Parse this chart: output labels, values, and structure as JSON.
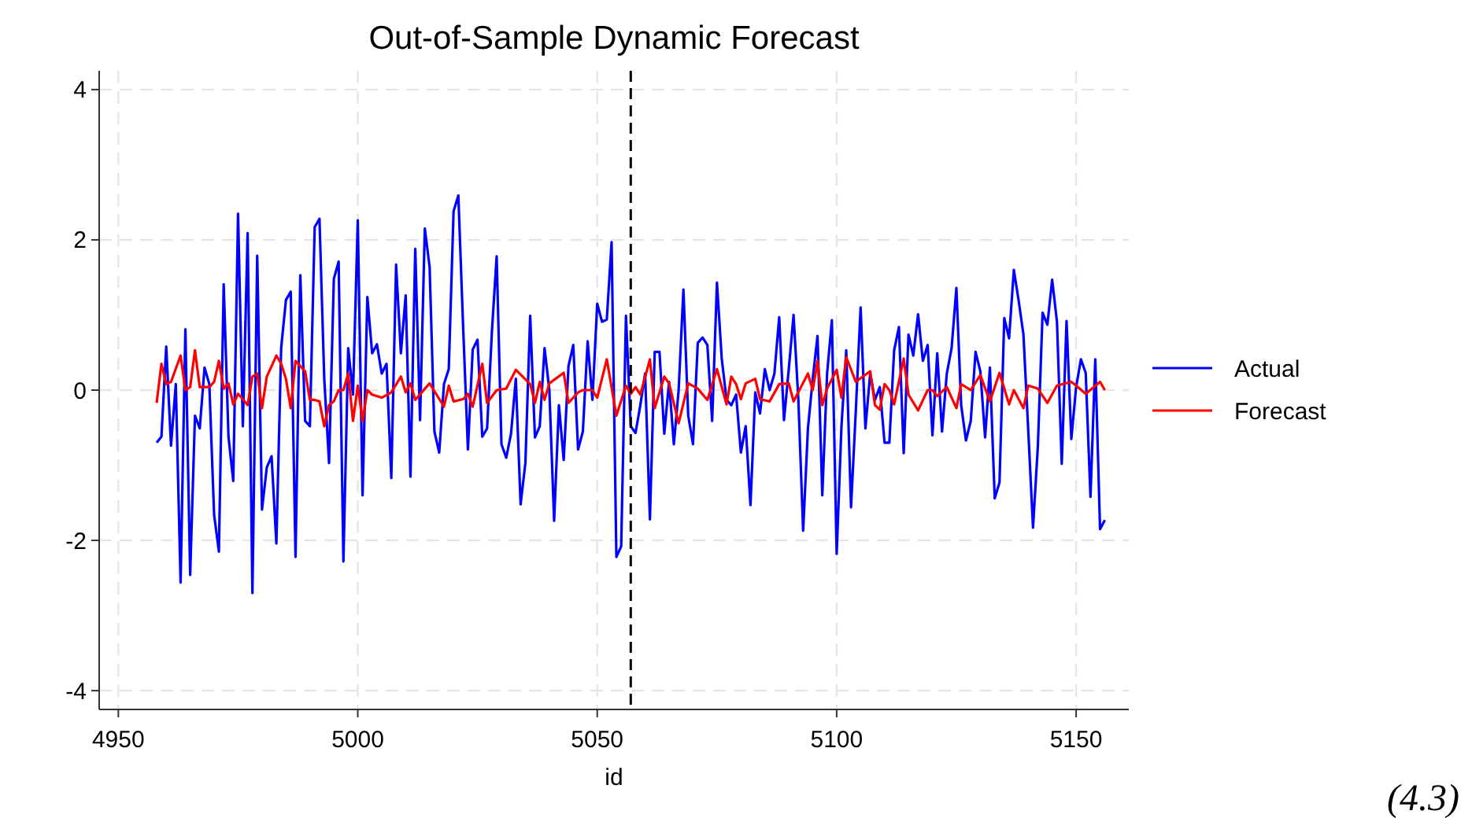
{
  "chart_data": {
    "type": "line",
    "title": "Out-of-Sample Dynamic Forecast",
    "xlabel": "id",
    "annotations": [
      "(4.3)"
    ],
    "xlim": [
      4946,
      5161
    ],
    "xticks": [
      4950,
      5000,
      5050,
      5100,
      5150
    ],
    "ylim": [
      -4.25,
      4.25
    ],
    "yticks": [
      -4,
      -2,
      0,
      2,
      4
    ],
    "grid": true,
    "legend": "right",
    "ref_lines": [
      {
        "axis": "x",
        "value": 5057,
        "label": null,
        "color": "#000000",
        "line_style": "dashed"
      }
    ],
    "x": [
      4958,
      4959,
      4960,
      4961,
      4962,
      4963,
      4964,
      4965,
      4966,
      4967,
      4968,
      4969,
      4970,
      4971,
      4972,
      4973,
      4974,
      4975,
      4976,
      4977,
      4978,
      4979,
      4980,
      4981,
      4982,
      4983,
      4984,
      4985,
      4986,
      4987,
      4988,
      4989,
      4990,
      4991,
      4992,
      4993,
      4994,
      4995,
      4996,
      4997,
      4998,
      4999,
      5000,
      5001,
      5002,
      5003,
      5004,
      5005,
      5006,
      5007,
      5008,
      5009,
      5010,
      5011,
      5012,
      5013,
      5014,
      5015,
      5016,
      5017,
      5018,
      5019,
      5020,
      5021,
      5022,
      5023,
      5024,
      5025,
      5026,
      5027,
      5028,
      5029,
      5030,
      5031,
      5032,
      5033,
      5034,
      5035,
      5036,
      5037,
      5038,
      5039,
      5040,
      5041,
      5042,
      5043,
      5044,
      5045,
      5046,
      5047,
      5048,
      5049,
      5050,
      5051,
      5052,
      5053,
      5054,
      5055,
      5056,
      5057,
      5058,
      5059,
      5060,
      5061,
      5062,
      5063,
      5064,
      5065,
      5066,
      5067,
      5068,
      5069,
      5070,
      5071,
      5072,
      5073,
      5074,
      5075,
      5076,
      5077,
      5078,
      5079,
      5080,
      5081,
      5082,
      5083,
      5084,
      5085,
      5086,
      5087,
      5088,
      5089,
      5090,
      5091,
      5092,
      5093,
      5094,
      5095,
      5096,
      5097,
      5098,
      5099,
      5100,
      5101,
      5102,
      5103,
      5104,
      5105,
      5106,
      5107,
      5108,
      5109,
      5110,
      5111,
      5112,
      5113,
      5114,
      5115,
      5116,
      5117,
      5118,
      5119,
      5120,
      5121,
      5122,
      5123,
      5124,
      5125,
      5126,
      5127,
      5128,
      5129,
      5130,
      5131,
      5132,
      5133,
      5134,
      5135,
      5136,
      5137,
      5138,
      5139,
      5140,
      5141,
      5142,
      5143,
      5144,
      5145,
      5146,
      5147,
      5148,
      5149,
      5150,
      5151,
      5152,
      5153,
      5154,
      5155,
      5156
    ],
    "series": [
      {
        "name": "Actual",
        "color": "#0000ff",
        "values": [
          -0.7,
          -0.62,
          0.58,
          -0.74,
          0.08,
          -2.56,
          0.81,
          -2.46,
          -0.34,
          -0.51,
          0.3,
          0.08,
          -1.66,
          -2.15,
          1.41,
          -0.62,
          -1.21,
          2.35,
          -0.48,
          2.09,
          -2.7,
          1.79,
          -1.59,
          -1.03,
          -0.88,
          -2.04,
          0.56,
          1.2,
          1.31,
          -2.22,
          1.53,
          -0.41,
          -0.48,
          2.17,
          2.28,
          0.15,
          -0.97,
          1.48,
          1.71,
          -2.28,
          0.56,
          -0.06,
          2.26,
          -1.4,
          1.24,
          0.49,
          0.61,
          0.22,
          0.35,
          -1.17,
          1.67,
          0.49,
          1.26,
          -1.15,
          1.88,
          -0.4,
          2.15,
          1.64,
          -0.55,
          -0.83,
          0.08,
          0.28,
          2.38,
          2.59,
          0.84,
          -0.79,
          0.54,
          0.67,
          -0.62,
          -0.51,
          0.77,
          1.78,
          -0.72,
          -0.9,
          -0.58,
          0.15,
          -1.52,
          -0.97,
          0.99,
          -0.63,
          -0.48,
          0.56,
          0,
          -1.74,
          -0.2,
          -0.93,
          0.32,
          0.6,
          -0.79,
          -0.55,
          0.65,
          -0.13,
          1.15,
          0.91,
          0.94,
          1.97,
          -2.22,
          -2.08,
          0.99,
          -0.48,
          -0.57,
          -0.2,
          0.22,
          -1.72,
          0.51,
          0.51,
          -0.58,
          0.11,
          -0.72,
          0,
          1.34,
          -0.34,
          -0.72,
          0.63,
          0.7,
          0.6,
          -0.41,
          1.43,
          0.42,
          -0.13,
          -0.2,
          -0.06,
          -0.83,
          -0.48,
          -1.53,
          -0.03,
          -0.31,
          0.28,
          0,
          0.22,
          0.97,
          -0.4,
          0.28,
          1.0,
          -0.13,
          -1.87,
          -0.51,
          0.15,
          0.72,
          -1.4,
          0.22,
          0.93,
          -2.18,
          -0.48,
          0.53,
          -1.56,
          -0.27,
          1.1,
          -0.51,
          0.22,
          -0.13,
          0.04,
          -0.7,
          -0.7,
          0.53,
          0.84,
          -0.84,
          0.74,
          0.46,
          1.01,
          0.39,
          0.6,
          -0.6,
          0.49,
          -0.55,
          0.22,
          0.56,
          1.36,
          -0.2,
          -0.67,
          -0.41,
          0.51,
          0.25,
          -0.63,
          0.3,
          -1.44,
          -1.23,
          0.96,
          0.69,
          1.6,
          1.19,
          0.74,
          -0.53,
          -1.83,
          -0.76,
          1.03,
          0.87,
          1.47,
          0.91,
          -0.98,
          0.92,
          -0.65,
          0.04,
          0.41,
          0.23,
          -1.42,
          0.41,
          -1.85,
          -1.73
        ]
      },
      {
        "name": "Forecast",
        "color": "#ff0000",
        "x": [
          4958,
          4959,
          4960,
          4961,
          4963,
          4964,
          4965,
          4966,
          4967,
          4969,
          4970,
          4971,
          4972,
          4973,
          4974,
          4975,
          4976,
          4977,
          4978,
          4979,
          4980,
          4981,
          4983,
          4984,
          4985,
          4986,
          4987,
          4989,
          4990,
          4991,
          4992,
          4993,
          4994,
          4995,
          4996,
          4997,
          4998,
          4999,
          5000,
          5001,
          5002,
          5003,
          5005,
          5007,
          5009,
          5010,
          5011,
          5012,
          5015,
          5018,
          5019,
          5020,
          5022,
          5023,
          5024,
          5026,
          5027,
          5029,
          5031,
          5033,
          5036,
          5037,
          5038,
          5039,
          5040,
          5043,
          5044,
          5046,
          5047,
          5049,
          5050,
          5052,
          5054,
          5056,
          5057,
          5058,
          5059,
          5061,
          5062,
          5064,
          5065,
          5067,
          5069,
          5071,
          5073,
          5075,
          5077,
          5078,
          5079,
          5080,
          5081,
          5083,
          5084,
          5086,
          5088,
          5090,
          5091,
          5094,
          5095,
          5096,
          5097,
          5098,
          5100,
          5101,
          5102,
          5104,
          5105,
          5107,
          5108,
          5109,
          5110,
          5111,
          5112,
          5114,
          5115,
          5117,
          5119,
          5120,
          5121,
          5123,
          5125,
          5126,
          5128,
          5130,
          5132,
          5134,
          5136,
          5137,
          5139,
          5140,
          5142,
          5144,
          5146,
          5149,
          5150,
          5152,
          5155,
          5156
        ],
        "values": [
          -0.17,
          0.35,
          0.08,
          0.11,
          0.46,
          0,
          0.04,
          0.53,
          0.04,
          0.04,
          0.11,
          0.39,
          0.02,
          0.09,
          -0.19,
          -0.05,
          -0.12,
          -0.2,
          0.18,
          0.22,
          -0.24,
          0.18,
          0.46,
          0.35,
          0.15,
          -0.24,
          0.39,
          0.25,
          -0.13,
          -0.13,
          -0.15,
          -0.48,
          -0.2,
          -0.15,
          0,
          0,
          0.22,
          -0.41,
          0.06,
          -0.41,
          0,
          -0.06,
          -0.1,
          -0.03,
          0.18,
          -0.03,
          0.09,
          -0.13,
          0.09,
          -0.22,
          0.06,
          -0.15,
          -0.12,
          -0.05,
          -0.22,
          0.35,
          -0.17,
          0,
          0.02,
          0.27,
          0.08,
          -0.17,
          0.11,
          -0.13,
          0.09,
          0.23,
          -0.17,
          -0.03,
          0,
          0,
          -0.1,
          0.41,
          -0.34,
          0.06,
          -0.05,
          0.04,
          -0.06,
          0.41,
          -0.24,
          0.18,
          0.09,
          -0.44,
          0.09,
          0.02,
          -0.13,
          0.28,
          -0.19,
          0.18,
          0.08,
          -0.12,
          0.09,
          0.15,
          -0.12,
          -0.15,
          0.08,
          0.09,
          -0.15,
          0.22,
          0,
          0.39,
          -0.2,
          0.02,
          0.27,
          -0.1,
          0.44,
          0.11,
          0.16,
          0.25,
          -0.2,
          -0.26,
          0.08,
          0,
          -0.19,
          0.42,
          -0.06,
          -0.27,
          0,
          0,
          -0.08,
          0.04,
          -0.24,
          0.08,
          0,
          0.2,
          -0.15,
          0.23,
          -0.19,
          0,
          -0.24,
          0.06,
          0.02,
          -0.17,
          0.06,
          0.11,
          0.06,
          -0.05,
          0.11,
          0
        ]
      }
    ]
  }
}
